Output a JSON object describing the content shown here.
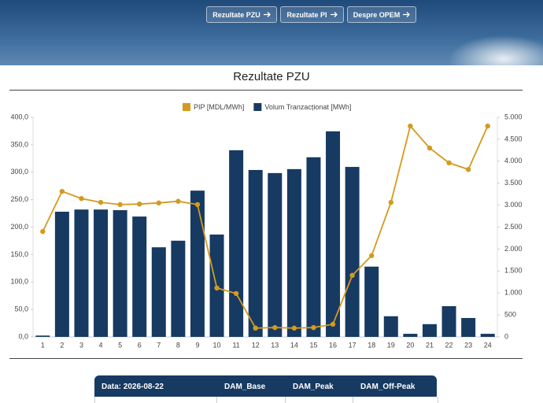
{
  "nav": {
    "buttons": [
      "Rezultate PZU",
      "Rezultate PI",
      "Despre OPEM"
    ]
  },
  "section_title": "Rezultate PZU",
  "chart_data": {
    "type": "combo",
    "categories": [
      "1",
      "2",
      "3",
      "4",
      "5",
      "6",
      "7",
      "8",
      "9",
      "10",
      "11",
      "12",
      "13",
      "14",
      "15",
      "16",
      "17",
      "18",
      "19",
      "20",
      "21",
      "22",
      "23",
      "24"
    ],
    "series": [
      {
        "name": "PIP [MDL/MWh]",
        "color": "#d49a1e",
        "type": "line",
        "values": [
          192,
          265,
          252,
          245,
          241,
          242,
          244,
          247,
          241,
          89,
          79,
          16,
          17,
          16,
          17,
          23,
          112,
          148,
          245,
          384,
          344,
          317,
          305,
          384
        ]
      },
      {
        "name": "Volum Tranzacționat [MWh]",
        "color": "#173a62",
        "type": "bar",
        "axis": "y2",
        "values": [
          30,
          2850,
          2900,
          2900,
          2885,
          2740,
          2040,
          2190,
          3330,
          2330,
          4250,
          3800,
          3730,
          3820,
          4090,
          4680,
          3870,
          1600,
          470,
          70,
          290,
          700,
          430,
          70
        ]
      }
    ],
    "ylim": [
      0,
      400
    ],
    "yticks": [
      {
        "value": 0,
        "label": "0,0"
      },
      {
        "value": 50,
        "label": "50,0"
      },
      {
        "value": 100,
        "label": "100,0"
      },
      {
        "value": 150,
        "label": "150,0"
      },
      {
        "value": 200,
        "label": "200,0"
      },
      {
        "value": 250,
        "label": "250,0"
      },
      {
        "value": 300,
        "label": "300,0"
      },
      {
        "value": 350,
        "label": "350,0"
      },
      {
        "value": 400,
        "label": "400,0"
      }
    ],
    "y2lim": [
      0,
      5000
    ],
    "y2ticks": [
      0,
      500,
      {
        "value": 1000,
        "label": "1.000"
      },
      {
        "value": 1500,
        "label": "1.500"
      },
      {
        "value": 2000,
        "label": "2.000"
      },
      {
        "value": 2500,
        "label": "2.500"
      },
      {
        "value": 3000,
        "label": "3.000"
      },
      {
        "value": 3500,
        "label": "3.500"
      },
      {
        "value": 4000,
        "label": "4.000"
      },
      {
        "value": 4500,
        "label": "4.500"
      },
      {
        "value": 5000,
        "label": "5.000"
      }
    ],
    "grid": false,
    "legend": "top"
  },
  "table": {
    "header": [
      "Data: 2026-08-22",
      "DAM_Base",
      "DAM_Peak",
      "DAM_Off-Peak"
    ]
  }
}
